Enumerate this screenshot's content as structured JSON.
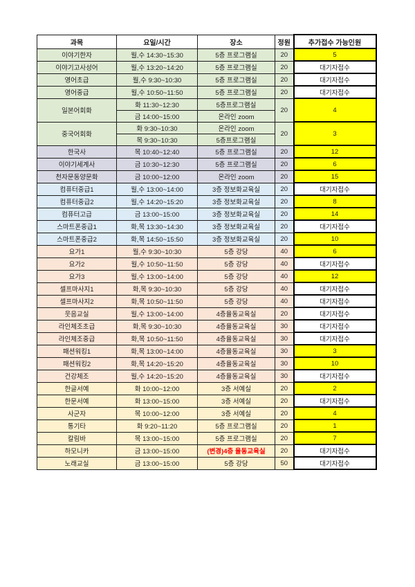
{
  "colors": {
    "green": "#dfead3",
    "gray": "#d8d8e4",
    "blue": "#dcebf6",
    "pink": "#fbe5d6",
    "cream": "#fdf2cd",
    "highlight": "#ffff00",
    "alert": "#ff0000"
  },
  "table": {
    "headers": {
      "subject": "과목",
      "time": "요일/시간",
      "place": "장소",
      "capacity": "정원",
      "extra": "추가접수 가능인원"
    },
    "rows": [
      {
        "subject": "이야기한자",
        "group": "green",
        "capacity": "20",
        "extra": "5",
        "available": true,
        "sessions": [
          {
            "time": "월,수 14:30~15:30",
            "place": "5층 프로그램실"
          }
        ]
      },
      {
        "subject": "이야기고사성어",
        "group": "green",
        "capacity": "20",
        "extra": "대기자접수",
        "available": false,
        "sessions": [
          {
            "time": "월,수 13:20~14:20",
            "place": "5층 프로그램실"
          }
        ]
      },
      {
        "subject": "영어초급",
        "group": "green",
        "capacity": "20",
        "extra": "대기자접수",
        "available": false,
        "sessions": [
          {
            "time": "월,수 9:30~10:30",
            "place": "5층 프로그램실"
          }
        ]
      },
      {
        "subject": "영어중급",
        "group": "green",
        "capacity": "20",
        "extra": "대기자접수",
        "available": false,
        "sessions": [
          {
            "time": "월,수 10:50~11:50",
            "place": "5층 프로그램실"
          }
        ]
      },
      {
        "subject": "일본어회화",
        "group": "green",
        "capacity": "20",
        "extra": "4",
        "available": true,
        "sessions": [
          {
            "time": "화 11:30~12:30",
            "place": "5층프로그램실"
          },
          {
            "time": "금 14:00~15:00",
            "place": "온라인 zoom"
          }
        ]
      },
      {
        "subject": "중국어회화",
        "group": "green",
        "capacity": "20",
        "extra": "3",
        "available": true,
        "sessions": [
          {
            "time": "화 9:30~10:30",
            "place": "온라인 zoom"
          },
          {
            "time": "목 9:30~10:30",
            "place": "5층프로그램실"
          }
        ]
      },
      {
        "subject": "한국사",
        "group": "gray",
        "capacity": "20",
        "extra": "12",
        "available": true,
        "sessions": [
          {
            "time": "목 10:40~12:40",
            "place": "5층 프로그램실"
          }
        ]
      },
      {
        "subject": "이야기세계사",
        "group": "gray",
        "capacity": "20",
        "extra": "6",
        "available": true,
        "sessions": [
          {
            "time": "금 10:30~12:30",
            "place": "5층 프로그램실"
          }
        ]
      },
      {
        "subject": "천자문동양문화",
        "group": "gray",
        "capacity": "20",
        "extra": "15",
        "available": true,
        "sessions": [
          {
            "time": "금 10:00~12:00",
            "place": "온라인 zoom"
          }
        ]
      },
      {
        "subject": "컴퓨터중급1",
        "group": "blue",
        "capacity": "20",
        "extra": "대기자접수",
        "available": false,
        "sessions": [
          {
            "time": "월,수 13:00~14:00",
            "place": "3층 정보화교육실"
          }
        ]
      },
      {
        "subject": "컴퓨터중급2",
        "group": "blue",
        "capacity": "20",
        "extra": "8",
        "available": true,
        "sessions": [
          {
            "time": "월,수 14:20~15:20",
            "place": "3층 정보화교육실"
          }
        ]
      },
      {
        "subject": "컴퓨터고급",
        "group": "blue",
        "capacity": "20",
        "extra": "14",
        "available": true,
        "sessions": [
          {
            "time": "금 13:00~15:00",
            "place": "3층 정보화교육실"
          }
        ]
      },
      {
        "subject": "스마트폰중급1",
        "group": "blue",
        "capacity": "20",
        "extra": "대기자접수",
        "available": false,
        "sessions": [
          {
            "time": "화,목 13:30~14:30",
            "place": "3층 정보화교육실"
          }
        ]
      },
      {
        "subject": "스마트폰중급2",
        "group": "blue",
        "capacity": "20",
        "extra": "10",
        "available": true,
        "sessions": [
          {
            "time": "화,목 14:50~15:50",
            "place": "3층 정보화교육실"
          }
        ]
      },
      {
        "subject": "요가1",
        "group": "pink",
        "capacity": "40",
        "extra": "6",
        "available": true,
        "sessions": [
          {
            "time": "월,수 9:30~10:30",
            "place": "5층 강당"
          }
        ]
      },
      {
        "subject": "요가2",
        "group": "pink",
        "capacity": "40",
        "extra": "대기자접수",
        "available": false,
        "sessions": [
          {
            "time": "월,수 10:50~11:50",
            "place": "5층 강당"
          }
        ]
      },
      {
        "subject": "요가3",
        "group": "pink",
        "capacity": "40",
        "extra": "12",
        "available": true,
        "sessions": [
          {
            "time": "월,수 13:00~14:00",
            "place": "5층 강당"
          }
        ]
      },
      {
        "subject": "셀프마사지1",
        "group": "pink",
        "capacity": "40",
        "extra": "대기자접수",
        "available": false,
        "sessions": [
          {
            "time": "화,목 9:30~10:30",
            "place": "5층 강당"
          }
        ]
      },
      {
        "subject": "셀프마사지2",
        "group": "pink",
        "capacity": "40",
        "extra": "대기자접수",
        "available": false,
        "sessions": [
          {
            "time": "화,목 10:50~11:50",
            "place": "5층 강당"
          }
        ]
      },
      {
        "subject": "웃음교실",
        "group": "pink",
        "capacity": "20",
        "extra": "대기자접수",
        "available": false,
        "sessions": [
          {
            "time": "월,수 13:00~14:00",
            "place": "4층율동교육실"
          }
        ]
      },
      {
        "subject": "라인체조초급",
        "group": "pink",
        "capacity": "30",
        "extra": "대기자접수",
        "available": false,
        "sessions": [
          {
            "time": "화,목 9:30~10:30",
            "place": "4층율동교육실"
          }
        ]
      },
      {
        "subject": "라인체조중급",
        "group": "pink",
        "capacity": "30",
        "extra": "대기자접수",
        "available": false,
        "sessions": [
          {
            "time": "화,목 10:50~11:50",
            "place": "4층율동교육실"
          }
        ]
      },
      {
        "subject": "패션워킹1",
        "group": "pink",
        "capacity": "30",
        "extra": "3",
        "available": true,
        "sessions": [
          {
            "time": "화,목 13:00~14:00",
            "place": "4층율동교육실"
          }
        ]
      },
      {
        "subject": "패션워킹2",
        "group": "pink",
        "capacity": "30",
        "extra": "10",
        "available": true,
        "sessions": [
          {
            "time": "화,목 14:20~15:20",
            "place": "4층율동교육실"
          }
        ]
      },
      {
        "subject": "건강체조",
        "group": "pink",
        "capacity": "30",
        "extra": "대기자접수",
        "available": false,
        "sessions": [
          {
            "time": "월,수 14:20~15:20",
            "place": "4층율동교육실"
          }
        ]
      },
      {
        "subject": "한글서예",
        "group": "cream",
        "capacity": "20",
        "extra": "2",
        "available": true,
        "sessions": [
          {
            "time": "화 10:00~12:00",
            "place": "3층 서예실"
          }
        ]
      },
      {
        "subject": "한문서예",
        "group": "cream",
        "capacity": "20",
        "extra": "대기자접수",
        "available": false,
        "sessions": [
          {
            "time": "화 13:00~15:00",
            "place": "3층 서예실"
          }
        ]
      },
      {
        "subject": "사군자",
        "group": "cream",
        "capacity": "20",
        "extra": "4",
        "available": true,
        "sessions": [
          {
            "time": "목 10:00~12:00",
            "place": "3층 서예실"
          }
        ]
      },
      {
        "subject": "통기타",
        "group": "cream",
        "capacity": "20",
        "extra": "1",
        "available": true,
        "sessions": [
          {
            "time": "화 9:20~11:20",
            "place": "5층 프로그램실"
          }
        ]
      },
      {
        "subject": "칼림바",
        "group": "cream",
        "capacity": "20",
        "extra": "7",
        "available": true,
        "sessions": [
          {
            "time": "목 13:00~15:00",
            "place": "5층 프로그램실"
          }
        ]
      },
      {
        "subject": "하모니카",
        "group": "cream",
        "capacity": "20",
        "extra": "대기자접수",
        "available": false,
        "sessions": [
          {
            "time": "금 13:00~15:00",
            "place": "(변경)4층 율동교육실",
            "alert": true
          }
        ]
      },
      {
        "subject": "노래교실",
        "group": "cream",
        "capacity": "50",
        "extra": "대기자접수",
        "available": false,
        "sessions": [
          {
            "time": "금 13:00~15:00",
            "place": "5층 강당"
          }
        ]
      }
    ]
  }
}
